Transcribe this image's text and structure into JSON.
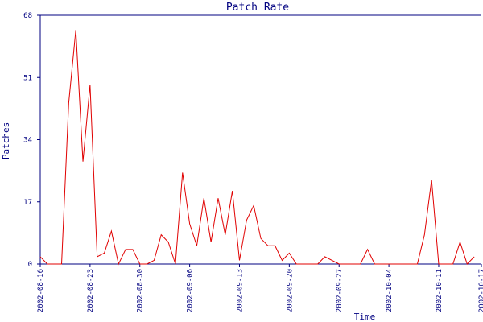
{
  "chart_data": {
    "type": "line",
    "title": "Patch Rate",
    "x_label": "Time",
    "y_label": "Patches",
    "x": [
      "2002-08-16",
      "2002-08-17",
      "2002-08-18",
      "2002-08-19",
      "2002-08-20",
      "2002-08-21",
      "2002-08-22",
      "2002-08-23",
      "2002-08-24",
      "2002-08-25",
      "2002-08-26",
      "2002-08-27",
      "2002-08-28",
      "2002-08-29",
      "2002-08-30",
      "2002-08-31",
      "2002-09-01",
      "2002-09-02",
      "2002-09-03",
      "2002-09-04",
      "2002-09-05",
      "2002-09-06",
      "2002-09-07",
      "2002-09-08",
      "2002-09-09",
      "2002-09-10",
      "2002-09-11",
      "2002-09-12",
      "2002-09-13",
      "2002-09-14",
      "2002-09-15",
      "2002-09-16",
      "2002-09-17",
      "2002-09-18",
      "2002-09-19",
      "2002-09-20",
      "2002-09-21",
      "2002-09-22",
      "2002-09-23",
      "2002-09-24",
      "2002-09-25",
      "2002-09-26",
      "2002-09-27",
      "2002-09-28",
      "2002-09-29",
      "2002-09-30",
      "2002-10-01",
      "2002-10-02",
      "2002-10-03",
      "2002-10-04",
      "2002-10-05",
      "2002-10-06",
      "2002-10-07",
      "2002-10-08",
      "2002-10-09",
      "2002-10-10",
      "2002-10-11",
      "2002-10-12",
      "2002-10-13",
      "2002-10-14",
      "2002-10-15",
      "2002-10-16"
    ],
    "series": [
      {
        "color": "#e00000",
        "values": [
          2,
          0,
          0,
          0,
          44,
          64,
          28,
          49,
          2,
          3,
          9,
          0,
          4,
          4,
          0,
          0,
          1,
          8,
          6,
          0,
          25,
          11,
          5,
          18,
          6,
          18,
          8,
          20,
          1,
          12,
          16,
          7,
          5,
          5,
          1,
          3,
          0,
          0,
          0,
          0,
          2,
          1,
          0,
          0,
          0,
          0,
          4,
          0,
          0,
          0,
          0,
          0,
          0,
          0,
          8,
          23,
          0,
          0,
          0,
          6,
          0,
          2
        ]
      }
    ],
    "xlim": [
      "2002-08-16",
      "2002-10-17"
    ],
    "xticks": [
      "2002-08-16",
      "2002-08-23",
      "2002-08-30",
      "2002-09-06",
      "2002-09-13",
      "2002-09-20",
      "2002-09-27",
      "2002-10-04",
      "2002-10-11",
      "2002-10-17"
    ],
    "ylim": [
      0,
      68
    ],
    "yticks": [
      0,
      17,
      34,
      51,
      68
    ],
    "axis_color": "#000080"
  }
}
